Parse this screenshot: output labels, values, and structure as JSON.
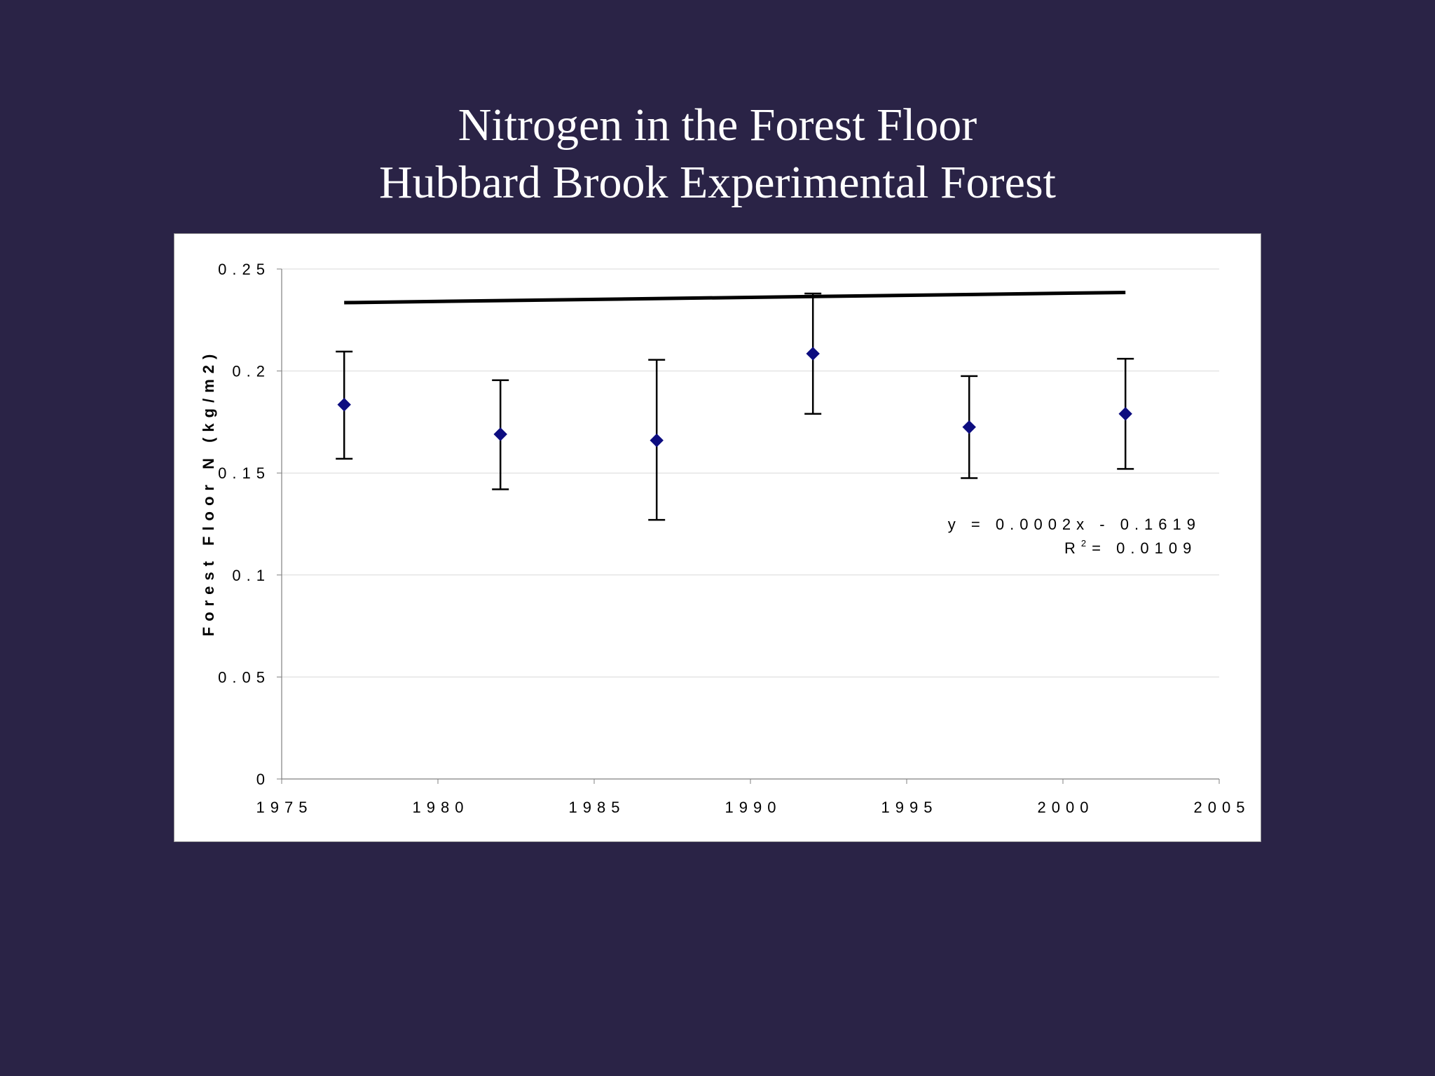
{
  "slide": {
    "title_line1": "Nitrogen in the Forest Floor",
    "title_line2": "Hubbard Brook Experimental Forest"
  },
  "chart_data": {
    "type": "scatter",
    "title": "Nitrogen in the Forest Floor / Hubbard Brook Experimental Forest",
    "ylabel": "Forest Floor N (kg/m2)",
    "xlabel": "",
    "xlim": [
      1975,
      2005
    ],
    "ylim": [
      0,
      0.25
    ],
    "x_ticks": [
      "1975",
      "1980",
      "1985",
      "1990",
      "1995",
      "2000",
      "2005"
    ],
    "y_ticks": [
      "0",
      "0.05",
      "0.1",
      "0.15",
      "0.2",
      "0.25"
    ],
    "grid": true,
    "series": [
      {
        "marker": "diamond",
        "color": "#0d0d80",
        "points": [
          {
            "x": 1977,
            "y": 0.1835,
            "err_low": 0.157,
            "err_high": 0.2095
          },
          {
            "x": 1982,
            "y": 0.169,
            "err_low": 0.142,
            "err_high": 0.1955
          },
          {
            "x": 1987,
            "y": 0.166,
            "err_low": 0.127,
            "err_high": 0.2055
          },
          {
            "x": 1992,
            "y": 0.2085,
            "err_low": 0.179,
            "err_high": 0.238
          },
          {
            "x": 1997,
            "y": 0.1725,
            "err_low": 0.1475,
            "err_high": 0.1975
          },
          {
            "x": 2002,
            "y": 0.179,
            "err_low": 0.152,
            "err_high": 0.206
          }
        ]
      }
    ],
    "trendline": {
      "x_start": 1977,
      "x_end": 2002,
      "slope": 0.0002,
      "intercept": -0.1619,
      "equation_text": "y = 0.0002x - 0.1619",
      "r2_label": "R",
      "r2_exponent": "2",
      "r2_value_text": "= 0.0109",
      "color": "#000000"
    }
  }
}
